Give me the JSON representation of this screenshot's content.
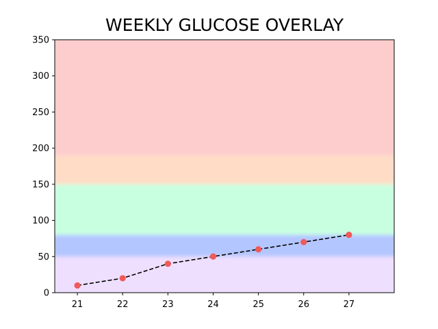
{
  "chart_data": {
    "type": "line",
    "title": "WEEKLY GLUCOSE OVERLAY",
    "xlabel": "",
    "ylabel": "",
    "x": [
      21,
      22,
      23,
      24,
      25,
      26,
      27
    ],
    "xlim": [
      20.5,
      28
    ],
    "ylim": [
      0,
      350
    ],
    "yticks": [
      0,
      50,
      100,
      150,
      200,
      250,
      300,
      350
    ],
    "series": [
      {
        "values": [
          10,
          20,
          40,
          50,
          60,
          70,
          80
        ],
        "line_color": "#000000",
        "line_style": "dashed",
        "marker_color": "#f05a5a"
      }
    ],
    "bands": [
      {
        "from": 0,
        "to": 50,
        "color": "#efdfff"
      },
      {
        "from": 50,
        "to": 80,
        "color": "#b3c6ff"
      },
      {
        "from": 80,
        "to": 150,
        "color": "#c9ffe1"
      },
      {
        "from": 150,
        "to": 190,
        "color": "#ffdcc6"
      },
      {
        "from": 190,
        "to": 350,
        "color": "#fdcdcd"
      }
    ],
    "grid": false
  }
}
